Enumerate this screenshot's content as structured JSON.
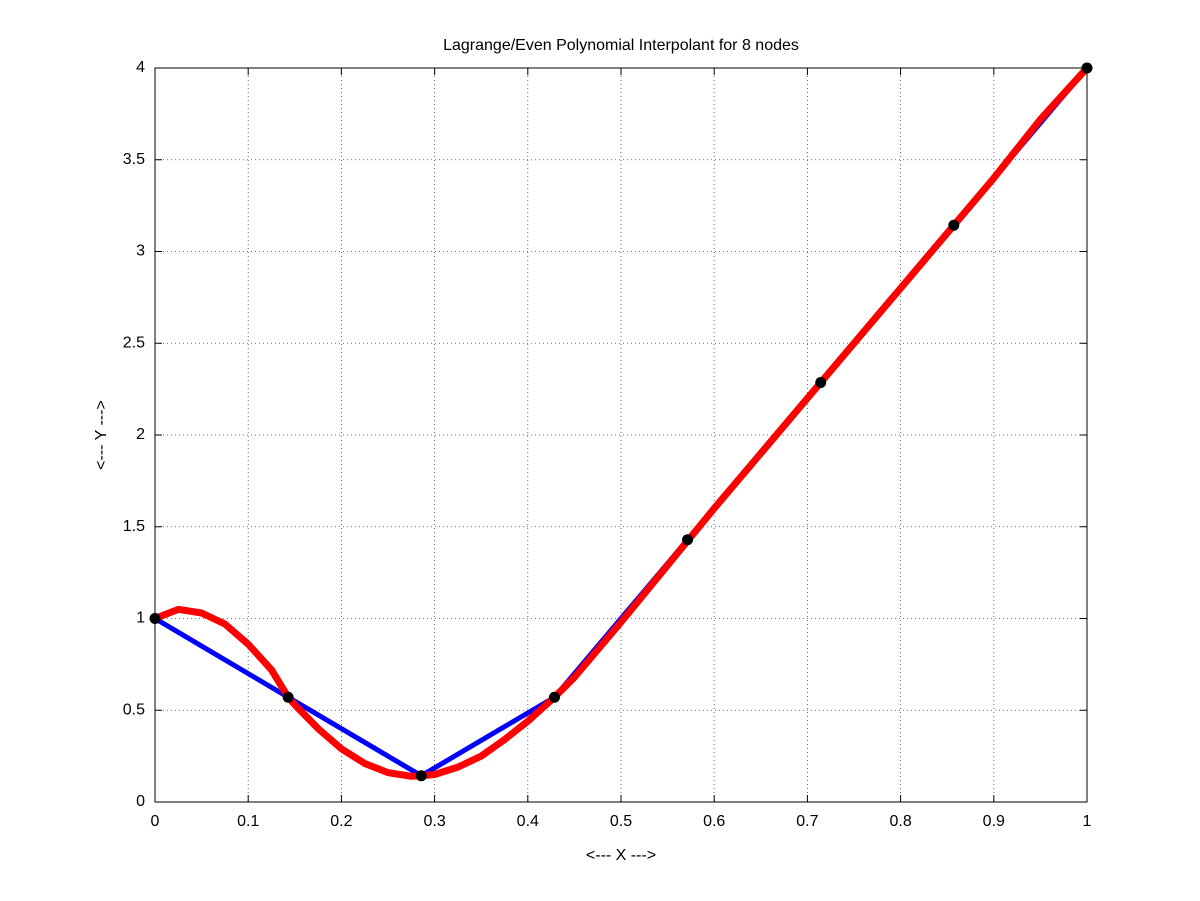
{
  "chart_data": {
    "type": "line",
    "title": "Lagrange/Even Polynomial Interpolant for 8 nodes",
    "xlabel": "<--- X --->",
    "ylabel": "<--- Y --->",
    "xlim": [
      0,
      1
    ],
    "ylim": [
      0,
      4
    ],
    "xticks": [
      0,
      0.1,
      0.2,
      0.3,
      0.4,
      0.5,
      0.6,
      0.7,
      0.8,
      0.9,
      1
    ],
    "yticks": [
      0,
      0.5,
      1,
      1.5,
      2,
      2.5,
      3,
      3.5,
      4
    ],
    "grid": true,
    "series": [
      {
        "color": "#0000ff",
        "style": "line",
        "x": [
          0,
          0.1429,
          0.2857,
          0.4286,
          0.5714,
          0.7143,
          0.8571,
          1
        ],
        "values": [
          1,
          0.571,
          0.143,
          0.571,
          1.429,
          2.286,
          3.143,
          4
        ]
      },
      {
        "color": "#ff0000",
        "style": "line",
        "x": [
          0,
          0.025,
          0.05,
          0.075,
          0.1,
          0.125,
          0.1429,
          0.15,
          0.175,
          0.2,
          0.225,
          0.25,
          0.275,
          0.2857,
          0.3,
          0.325,
          0.35,
          0.375,
          0.4,
          0.4286,
          0.45,
          0.5,
          0.55,
          0.6,
          0.65,
          0.7,
          0.75,
          0.8,
          0.85,
          0.9,
          0.95,
          1
        ],
        "values": [
          1,
          1.05,
          1.03,
          0.97,
          0.86,
          0.72,
          0.571,
          0.53,
          0.4,
          0.29,
          0.21,
          0.16,
          0.14,
          0.143,
          0.15,
          0.19,
          0.25,
          0.34,
          0.44,
          0.571,
          0.68,
          0.98,
          1.29,
          1.6,
          1.9,
          2.2,
          2.5,
          2.8,
          3.1,
          3.4,
          3.72,
          4
        ]
      },
      {
        "color": "#000000",
        "style": "markers",
        "x": [
          0,
          0.1429,
          0.2857,
          0.4286,
          0.5714,
          0.7143,
          0.8571,
          1
        ],
        "values": [
          1,
          0.571,
          0.143,
          0.571,
          1.429,
          2.286,
          3.143,
          4
        ]
      }
    ]
  }
}
